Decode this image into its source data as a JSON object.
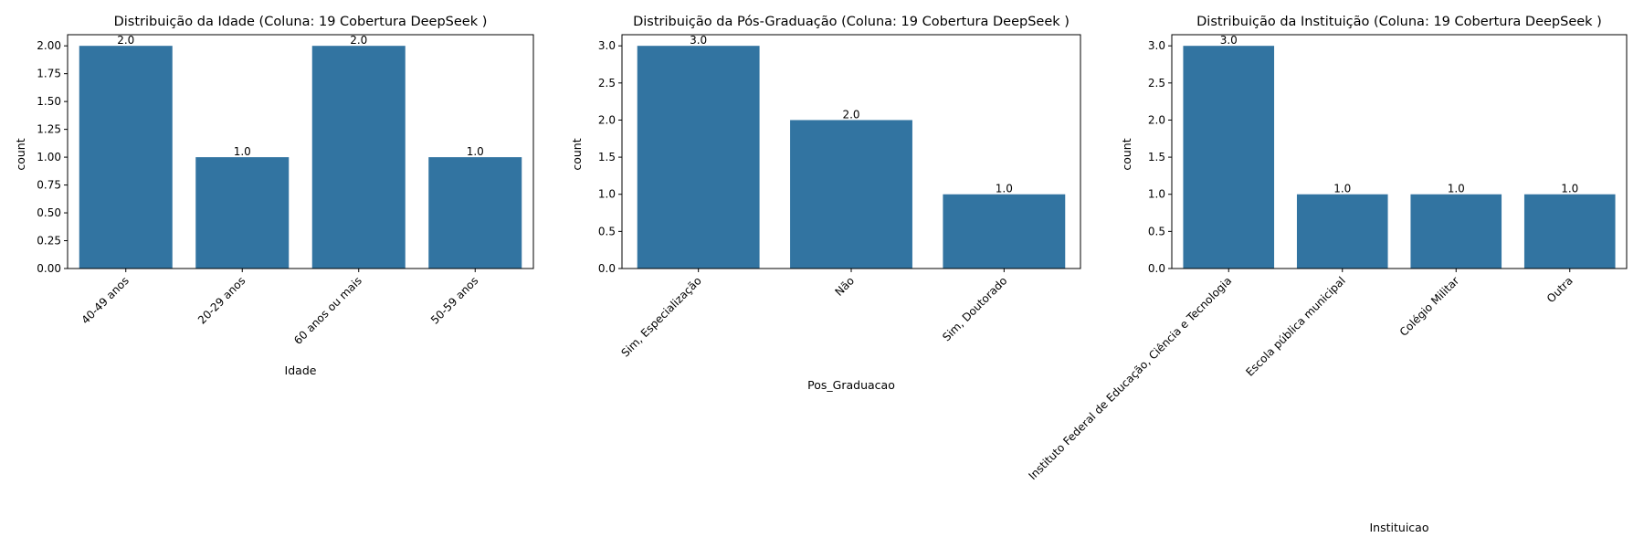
{
  "colors": {
    "bar": "#3274a1",
    "axis": "#000000",
    "background": "#ffffff"
  },
  "chart_data": [
    {
      "type": "bar",
      "title": "Distribuição da Idade (Coluna: 19 Cobertura DeepSeek )",
      "xlabel": "Idade",
      "ylabel": "count",
      "categories": [
        "40-49 anos",
        "20-29 anos",
        "60 anos ou mais",
        "50-59 anos"
      ],
      "values": [
        2,
        1,
        2,
        1
      ],
      "value_labels": [
        "2.0",
        "1.0",
        "2.0",
        "1.0"
      ],
      "ylim": [
        0,
        2.1
      ],
      "yticks": [
        0,
        0.25,
        0.5,
        0.75,
        1.0,
        1.25,
        1.5,
        1.75,
        2.0
      ],
      "ytick_labels": [
        "0.00",
        "0.25",
        "0.50",
        "0.75",
        "1.00",
        "1.25",
        "1.50",
        "1.75",
        "2.00"
      ],
      "grid": false,
      "xtick_rotation_deg": 45
    },
    {
      "type": "bar",
      "title": "Distribuição da Pós-Graduação (Coluna: 19 Cobertura DeepSeek )",
      "xlabel": "Pos_Graduacao",
      "ylabel": "count",
      "categories": [
        "Sim, Especialização",
        "Não",
        "Sim, Doutorado"
      ],
      "values": [
        3,
        2,
        1
      ],
      "value_labels": [
        "3.0",
        "2.0",
        "1.0"
      ],
      "ylim": [
        0,
        3.15
      ],
      "yticks": [
        0,
        0.5,
        1.0,
        1.5,
        2.0,
        2.5,
        3.0
      ],
      "ytick_labels": [
        "0.0",
        "0.5",
        "1.0",
        "1.5",
        "2.0",
        "2.5",
        "3.0"
      ],
      "grid": false,
      "xtick_rotation_deg": 45
    },
    {
      "type": "bar",
      "title": "Distribuição da Instituição (Coluna: 19 Cobertura DeepSeek )",
      "xlabel": "Instituicao",
      "ylabel": "count",
      "categories": [
        "Instituto Federal de Educação, Ciência e Tecnologia",
        "Escola pública municipal",
        "Colégio Militar",
        "Outra"
      ],
      "values": [
        3,
        1,
        1,
        1
      ],
      "value_labels": [
        "3.0",
        "1.0",
        "1.0",
        "1.0"
      ],
      "ylim": [
        0,
        3.15
      ],
      "yticks": [
        0,
        0.5,
        1.0,
        1.5,
        2.0,
        2.5,
        3.0
      ],
      "ytick_labels": [
        "0.0",
        "0.5",
        "1.0",
        "1.5",
        "2.0",
        "2.5",
        "3.0"
      ],
      "grid": false,
      "xtick_rotation_deg": 45
    }
  ]
}
